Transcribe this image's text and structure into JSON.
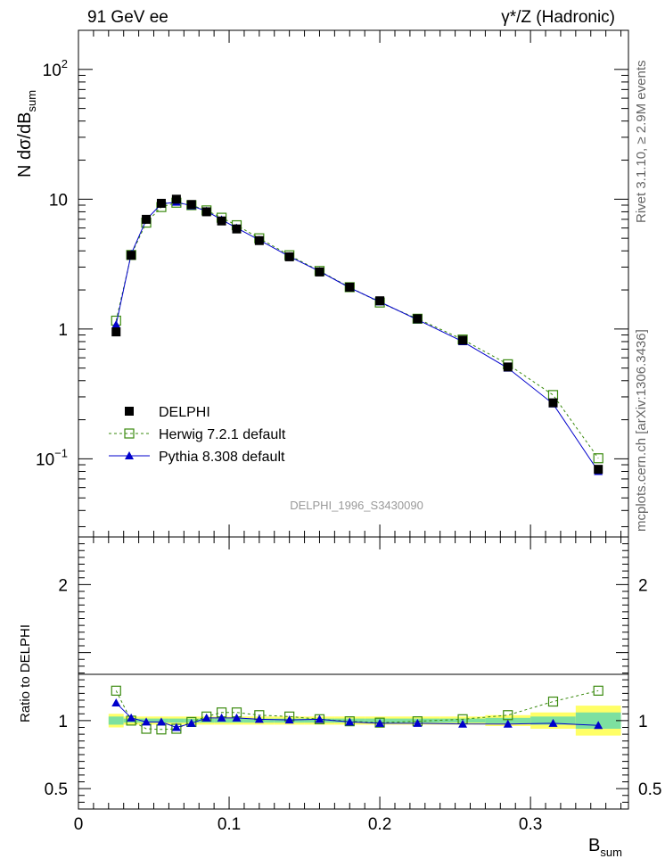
{
  "header": {
    "left": "91 GeV ee",
    "right": "γ*/Z (Hadronic)"
  },
  "side_text": {
    "rivet": "Rivet 3.1.10, ≥ 2.9M events",
    "mcplots": "mcplots.cern.ch [arXiv:1306.3436]"
  },
  "watermark": "DELPHI_1996_S3430090",
  "chart_data": [
    {
      "type": "scatter",
      "panel": "main",
      "yscale": "log",
      "ylim": [
        0.025,
        200
      ],
      "xlim": [
        0,
        0.365
      ],
      "ylabel": "N dσ/dB_sum",
      "ytick_labels": [
        "10^-1",
        "1",
        "10",
        "10^2"
      ],
      "legend_position": "lower-left",
      "x": [
        0.025,
        0.035,
        0.045,
        0.055,
        0.065,
        0.075,
        0.085,
        0.095,
        0.105,
        0.12,
        0.14,
        0.16,
        0.18,
        0.2,
        0.225,
        0.255,
        0.285,
        0.315,
        0.345
      ],
      "series": [
        {
          "name": "DELPHI",
          "color": "#000000",
          "marker": "square-filled",
          "values": [
            0.95,
            3.7,
            7.0,
            9.3,
            10.0,
            9.1,
            8.0,
            6.8,
            5.9,
            4.8,
            3.6,
            2.75,
            2.1,
            1.65,
            1.2,
            0.82,
            0.51,
            0.27,
            0.083
          ]
        },
        {
          "name": "Herwig 7.2.1 default",
          "color": "#3a8a0e",
          "marker": "square-open",
          "line": "dashed",
          "values": [
            1.16,
            3.72,
            6.6,
            8.7,
            9.4,
            9.0,
            8.2,
            7.2,
            6.3,
            5.0,
            3.7,
            2.8,
            2.1,
            1.6,
            1.2,
            0.83,
            0.535,
            0.31,
            0.101
          ]
        },
        {
          "name": "Pythia 8.308 default",
          "color": "#0000cc",
          "marker": "triangle-filled",
          "line": "solid",
          "values": [
            1.08,
            3.78,
            6.95,
            9.2,
            9.5,
            8.9,
            8.1,
            6.95,
            6.0,
            4.85,
            3.62,
            2.78,
            2.08,
            1.62,
            1.18,
            0.8,
            0.5,
            0.265,
            0.08
          ]
        }
      ]
    },
    {
      "type": "scatter",
      "panel": "ratio",
      "ylim": [
        0.35,
        2.35
      ],
      "xlim": [
        0,
        0.365
      ],
      "xlabel": "B_sum",
      "ylabel": "Ratio to DELPHI",
      "xtick_labels": [
        "0",
        "0.1",
        "0.2",
        "0.3"
      ],
      "ytick_labels": [
        "0.5",
        "1",
        "2"
      ],
      "x": [
        0.025,
        0.035,
        0.045,
        0.055,
        0.065,
        0.075,
        0.085,
        0.095,
        0.105,
        0.12,
        0.14,
        0.16,
        0.18,
        0.2,
        0.225,
        0.255,
        0.285,
        0.315,
        0.345
      ],
      "band_edges": [
        0.02,
        0.03,
        0.04,
        0.05,
        0.06,
        0.07,
        0.08,
        0.09,
        0.1,
        0.11,
        0.13,
        0.15,
        0.17,
        0.19,
        0.21,
        0.24,
        0.27,
        0.3,
        0.33,
        0.36
      ],
      "band_stat": [
        0.03,
        0.015,
        0.015,
        0.015,
        0.015,
        0.015,
        0.015,
        0.015,
        0.015,
        0.015,
        0.015,
        0.015,
        0.015,
        0.015,
        0.015,
        0.015,
        0.02,
        0.03,
        0.06
      ],
      "band_total": [
        0.05,
        0.03,
        0.03,
        0.03,
        0.03,
        0.03,
        0.03,
        0.03,
        0.03,
        0.03,
        0.03,
        0.03,
        0.03,
        0.03,
        0.03,
        0.03,
        0.04,
        0.06,
        0.11
      ],
      "colors": {
        "band_total": "#ffff66",
        "band_stat": "#7de0a0"
      },
      "series": [
        {
          "name": "Herwig 7.2.1 default",
          "color": "#3a8a0e",
          "marker": "square-open",
          "line": "dashed",
          "values": [
            1.22,
            1.0,
            0.94,
            0.935,
            0.94,
            0.99,
            1.03,
            1.06,
            1.06,
            1.04,
            1.03,
            1.01,
            0.995,
            0.985,
            0.995,
            1.01,
            1.04,
            1.14,
            1.22
          ]
        },
        {
          "name": "Pythia 8.308 default",
          "color": "#0000cc",
          "marker": "triangle-filled",
          "line": "solid",
          "values": [
            1.13,
            1.02,
            0.99,
            0.99,
            0.95,
            0.98,
            1.02,
            1.02,
            1.02,
            1.01,
            1.005,
            1.01,
            0.99,
            0.98,
            0.98,
            0.975,
            0.975,
            0.98,
            0.965
          ]
        }
      ]
    }
  ]
}
